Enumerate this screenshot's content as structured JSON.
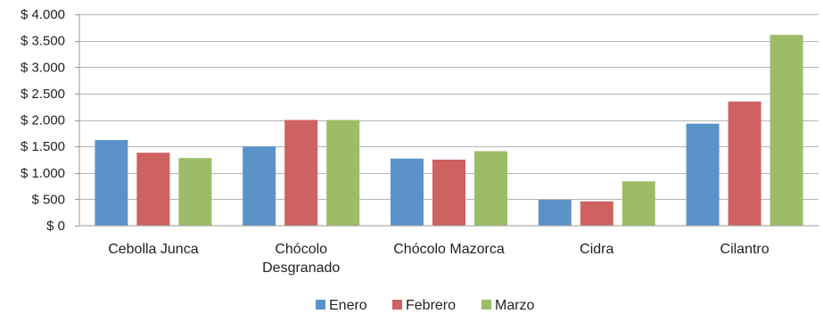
{
  "chart_data": {
    "type": "bar",
    "categories": [
      [
        "Cebolla Junca"
      ],
      [
        "Chócolo",
        "Desgranado"
      ],
      [
        "Chócolo Mazorca"
      ],
      [
        "Cidra"
      ],
      [
        "Cilantro"
      ]
    ],
    "series": [
      {
        "name": "Enero",
        "color": "#5b93c9",
        "values": [
          1620,
          1500,
          1270,
          490,
          1930
        ]
      },
      {
        "name": "Febrero",
        "color": "#cd6260",
        "values": [
          1380,
          2000,
          1250,
          460,
          2350
        ]
      },
      {
        "name": "Marzo",
        "color": "#9dbc67",
        "values": [
          1280,
          2000,
          1410,
          840,
          3610
        ]
      }
    ],
    "y_ticks": [
      0,
      500,
      1000,
      1500,
      2000,
      2500,
      3000,
      3500,
      4000
    ],
    "y_tick_labels": [
      "$ 0",
      "$ 500",
      "$ 1.000",
      "$ 1.500",
      "$ 2.000",
      "$ 2.500",
      "$ 3.000",
      "$ 3.500",
      "$ 4.000"
    ],
    "ylim": [
      0,
      4000
    ],
    "grid": "horizontal",
    "legend_position": "bottom"
  }
}
